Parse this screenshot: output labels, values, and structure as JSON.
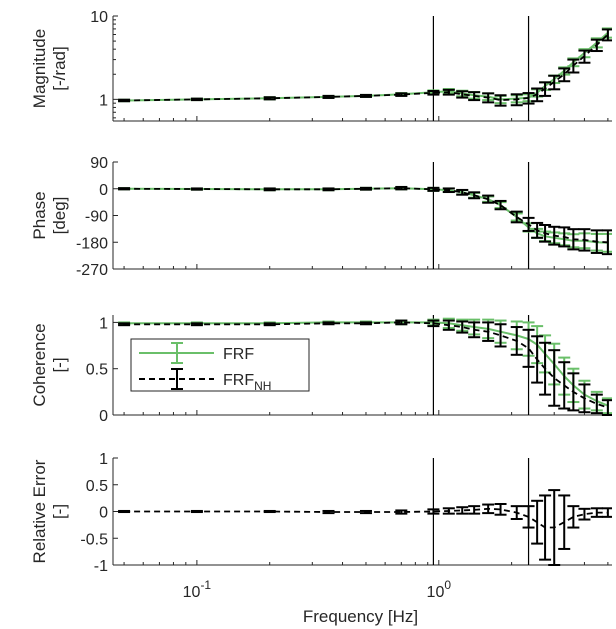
{
  "chart_data": {
    "type": "line",
    "xlabel": "Frequency [Hz]",
    "xscale": "log",
    "xlim": [
      0.045,
      5.2
    ],
    "xticks": [
      0.1,
      1
    ],
    "xtick_labels": [
      {
        "base": "10",
        "exp": "-1"
      },
      {
        "base": "10",
        "exp": "0"
      }
    ],
    "vlines": [
      0.95,
      2.35
    ],
    "colors": {
      "frf": "#6abf69",
      "frf_nh": "#000000"
    },
    "legend": {
      "location": "inside-left of coherence panel",
      "entries": [
        {
          "series": "frf",
          "label": "FRF",
          "sub": ""
        },
        {
          "series": "frf_nh",
          "label": "FRF",
          "sub": "NH"
        }
      ]
    },
    "panels": [
      {
        "id": "magnitude",
        "ylabel_lines": [
          "Magnitude",
          "[-/rad]"
        ],
        "yscale": "log",
        "ylim": [
          0.55,
          10
        ],
        "yticks": [
          1,
          10
        ],
        "ytick_labels": [
          "1",
          "10"
        ],
        "series": {
          "frf": {
            "x": [
              0.05,
              0.1,
              0.2,
              0.35,
              0.5,
              0.7,
              0.95,
              1.1,
              1.25,
              1.4,
              1.6,
              1.8,
              2.1,
              2.35,
              2.55,
              2.75,
              3.0,
              3.3,
              3.6,
              4.0,
              4.5,
              5.0
            ],
            "y": [
              0.97,
              1.0,
              1.03,
              1.07,
              1.1,
              1.15,
              1.22,
              1.25,
              1.18,
              1.12,
              1.08,
              1.0,
              1.02,
              1.05,
              1.2,
              1.45,
              1.75,
              2.2,
              2.8,
              3.6,
              4.8,
              6.3
            ],
            "err": [
              0.02,
              0.02,
              0.03,
              0.03,
              0.03,
              0.04,
              0.06,
              0.08,
              0.09,
              0.1,
              0.1,
              0.1,
              0.1,
              0.1,
              0.12,
              0.15,
              0.18,
              0.22,
              0.3,
              0.4,
              0.6,
              0.8
            ]
          },
          "frf_nh": {
            "x": [
              0.05,
              0.1,
              0.2,
              0.35,
              0.5,
              0.7,
              0.95,
              1.1,
              1.25,
              1.4,
              1.6,
              1.8,
              2.1,
              2.35,
              2.55,
              2.75,
              3.0,
              3.3,
              3.6,
              4.0,
              4.5,
              5.0
            ],
            "y": [
              0.97,
              1.0,
              1.03,
              1.07,
              1.1,
              1.14,
              1.2,
              1.22,
              1.15,
              1.1,
              1.05,
              0.98,
              1.0,
              1.04,
              1.15,
              1.35,
              1.62,
              2.0,
              2.55,
              3.3,
              4.5,
              6.0
            ],
            "err": [
              0.02,
              0.02,
              0.03,
              0.03,
              0.03,
              0.04,
              0.06,
              0.08,
              0.1,
              0.12,
              0.13,
              0.14,
              0.15,
              0.15,
              0.2,
              0.25,
              0.3,
              0.35,
              0.45,
              0.55,
              0.7,
              0.9
            ]
          }
        }
      },
      {
        "id": "phase",
        "ylabel_lines": [
          "Phase",
          "[deg]"
        ],
        "yscale": "linear",
        "ylim": [
          -270,
          90
        ],
        "yticks": [
          90,
          0,
          -90,
          -180,
          -270
        ],
        "ytick_labels": [
          "90",
          "0",
          "-90",
          "-180",
          "-270"
        ],
        "series": {
          "frf": {
            "x": [
              0.05,
              0.1,
              0.2,
              0.35,
              0.5,
              0.7,
              0.95,
              1.1,
              1.25,
              1.4,
              1.6,
              1.8,
              2.1,
              2.35,
              2.55,
              2.75,
              3.0,
              3.3,
              3.6,
              4.0,
              4.5,
              5.0
            ],
            "y": [
              0,
              -1,
              -2,
              -2,
              0,
              2,
              -2,
              -5,
              -12,
              -22,
              -35,
              -55,
              -95,
              -130,
              -150,
              -160,
              -165,
              -170,
              -175,
              -175,
              -180,
              -182
            ],
            "err": [
              2,
              2,
              3,
              3,
              3,
              4,
              5,
              6,
              7,
              8,
              9,
              10,
              12,
              14,
              15,
              16,
              18,
              20,
              22,
              25,
              28,
              30
            ]
          },
          "frf_nh": {
            "x": [
              0.05,
              0.1,
              0.2,
              0.35,
              0.5,
              0.7,
              0.95,
              1.1,
              1.25,
              1.4,
              1.6,
              1.8,
              2.1,
              2.35,
              2.55,
              2.75,
              3.0,
              3.3,
              3.6,
              4.0,
              4.5,
              5.0
            ],
            "y": [
              0,
              -1,
              -2,
              -2,
              0,
              2,
              -2,
              -5,
              -12,
              -22,
              -35,
              -55,
              -95,
              -120,
              -140,
              -150,
              -158,
              -162,
              -170,
              -172,
              -178,
              -180
            ],
            "err": [
              2,
              2,
              3,
              3,
              3,
              4,
              5,
              6,
              8,
              10,
              12,
              14,
              18,
              22,
              25,
              28,
              30,
              32,
              34,
              36,
              38,
              40
            ]
          }
        }
      },
      {
        "id": "coherence",
        "ylabel_lines": [
          "Coherence",
          "[-]"
        ],
        "yscale": "linear",
        "ylim": [
          0,
          1.08
        ],
        "yticks": [
          1,
          0.5,
          0
        ],
        "ytick_labels": [
          "1",
          "0.5",
          "0"
        ],
        "series": {
          "frf": {
            "x": [
              0.05,
              0.1,
              0.2,
              0.35,
              0.5,
              0.7,
              0.95,
              1.1,
              1.25,
              1.4,
              1.6,
              1.8,
              2.1,
              2.35,
              2.55,
              2.75,
              3.0,
              3.3,
              3.6,
              4.0,
              4.5,
              5.0
            ],
            "y": [
              0.99,
              0.99,
              0.99,
              1.0,
              1.0,
              1.0,
              1.0,
              0.99,
              0.97,
              0.95,
              0.93,
              0.9,
              0.86,
              0.82,
              0.76,
              0.66,
              0.55,
              0.42,
              0.32,
              0.22,
              0.15,
              0.1
            ],
            "err": [
              0.01,
              0.01,
              0.01,
              0.01,
              0.01,
              0.02,
              0.03,
              0.05,
              0.06,
              0.08,
              0.1,
              0.12,
              0.15,
              0.18,
              0.2,
              0.2,
              0.22,
              0.2,
              0.18,
              0.15,
              0.1,
              0.08
            ]
          },
          "frf_nh": {
            "x": [
              0.05,
              0.1,
              0.2,
              0.35,
              0.5,
              0.7,
              0.95,
              1.1,
              1.25,
              1.4,
              1.6,
              1.8,
              2.1,
              2.35,
              2.55,
              2.75,
              3.0,
              3.3,
              3.6,
              4.0,
              4.5,
              5.0
            ],
            "y": [
              0.98,
              0.98,
              0.98,
              0.99,
              0.99,
              1.0,
              0.99,
              0.97,
              0.95,
              0.92,
              0.9,
              0.86,
              0.8,
              0.72,
              0.6,
              0.5,
              0.4,
              0.32,
              0.25,
              0.18,
              0.12,
              0.08
            ],
            "err": [
              0.01,
              0.01,
              0.01,
              0.01,
              0.01,
              0.02,
              0.03,
              0.05,
              0.06,
              0.08,
              0.1,
              0.12,
              0.15,
              0.2,
              0.25,
              0.28,
              0.3,
              0.25,
              0.2,
              0.15,
              0.1,
              0.08
            ]
          }
        }
      },
      {
        "id": "relative_error",
        "ylabel_lines": [
          "Relative Error",
          "[-]"
        ],
        "yscale": "linear",
        "ylim": [
          -1,
          1
        ],
        "yticks": [
          1,
          0.5,
          0,
          -0.5,
          -1
        ],
        "ytick_labels": [
          "1",
          "0.5",
          "0",
          "-0.5",
          "-1"
        ],
        "series": {
          "frf_nh": {
            "x": [
              0.05,
              0.1,
              0.2,
              0.35,
              0.5,
              0.7,
              0.95,
              1.1,
              1.25,
              1.4,
              1.6,
              1.8,
              2.1,
              2.35,
              2.55,
              2.75,
              3.0,
              3.3,
              3.6,
              4.0,
              4.5,
              5.0
            ],
            "y": [
              0,
              0,
              0,
              -0.01,
              -0.01,
              -0.01,
              0,
              0.01,
              0.02,
              0.03,
              0.05,
              0.04,
              -0.02,
              -0.1,
              -0.2,
              -0.3,
              -0.3,
              -0.2,
              -0.1,
              -0.05,
              -0.02,
              -0.02
            ],
            "err": [
              0.01,
              0.01,
              0.01,
              0.02,
              0.02,
              0.03,
              0.04,
              0.05,
              0.06,
              0.07,
              0.08,
              0.1,
              0.12,
              0.2,
              0.4,
              0.6,
              0.7,
              0.5,
              0.2,
              0.1,
              0.08,
              0.08
            ]
          }
        }
      }
    ]
  }
}
